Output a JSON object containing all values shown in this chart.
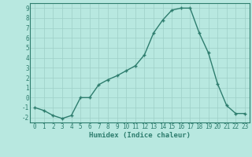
{
  "x": [
    0,
    1,
    2,
    3,
    4,
    5,
    6,
    7,
    8,
    9,
    10,
    11,
    12,
    13,
    14,
    15,
    16,
    17,
    18,
    19,
    20,
    21,
    22,
    23
  ],
  "y": [
    -1,
    -1.3,
    -1.8,
    -2.1,
    -1.8,
    0.0,
    0.0,
    1.3,
    1.8,
    2.2,
    2.7,
    3.2,
    4.3,
    6.5,
    7.8,
    8.8,
    9.0,
    9.0,
    6.5,
    4.5,
    1.4,
    -0.8,
    -1.6,
    -1.6
  ],
  "xlim": [
    -0.5,
    23.5
  ],
  "ylim": [
    -2.5,
    9.5
  ],
  "yticks": [
    -2,
    -1,
    0,
    1,
    2,
    3,
    4,
    5,
    6,
    7,
    8,
    9
  ],
  "xticks": [
    0,
    1,
    2,
    3,
    4,
    5,
    6,
    7,
    8,
    9,
    10,
    11,
    12,
    13,
    14,
    15,
    16,
    17,
    18,
    19,
    20,
    21,
    22,
    23
  ],
  "xlabel": "Humidex (Indice chaleur)",
  "line_color": "#2e7d6e",
  "marker": "+",
  "bg_color": "#b8e8e0",
  "grid_color": "#9ecfc7",
  "label_fontsize": 6.5,
  "tick_fontsize": 5.5,
  "linewidth": 1.0,
  "markersize": 3.5,
  "spine_color": "#2e7d6e"
}
